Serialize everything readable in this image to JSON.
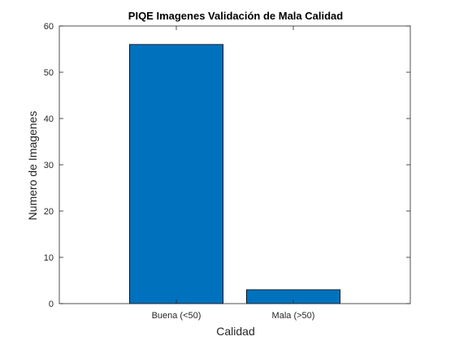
{
  "chart_data": {
    "type": "bar",
    "title": "PIQE Imagenes Validación de Mala Calidad",
    "xlabel": "Calidad",
    "ylabel": "Numero de Imagenes",
    "categories": [
      "Buena (<50)",
      "Mala (>50)"
    ],
    "values": [
      56,
      3
    ],
    "ylim": [
      0,
      60
    ],
    "yticks": [
      "0",
      "10",
      "20",
      "30",
      "40",
      "50",
      "60"
    ],
    "grid": false,
    "legend": "none",
    "colors": {
      "bar_fill": "#0072BD",
      "bar_edge": "#000000",
      "axis": "#262626",
      "background": "#ffffff"
    }
  }
}
